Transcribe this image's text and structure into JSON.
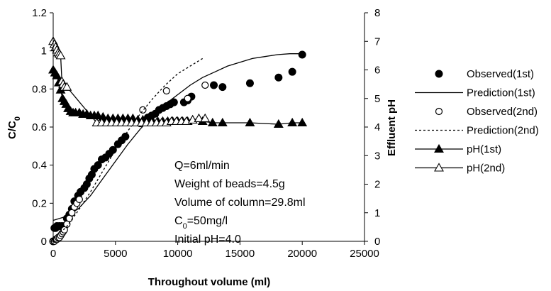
{
  "chart_data": {
    "type": "scatter",
    "xlabel": "Throughout volume (ml)",
    "ylabel_left": "C/C",
    "ylabel_left_subscript": "0",
    "ylabel_right": "Effluent pH",
    "xlim": [
      0,
      25000
    ],
    "ylim_left": [
      0,
      1.2
    ],
    "ylim_right": [
      0,
      8
    ],
    "x_ticks": [
      "0",
      "5000",
      "10000",
      "15000",
      "20000",
      "25000"
    ],
    "y_left_ticks": [
      "0",
      "0.2",
      "0.4",
      "0.6",
      "0.8",
      "1",
      "1.2"
    ],
    "y_right_ticks": [
      "0",
      "1",
      "2",
      "3",
      "4",
      "5",
      "6",
      "7",
      "8"
    ],
    "grid": false,
    "legend_position": "right",
    "annotations": [
      {
        "text": "Q=6ml/min"
      },
      {
        "text": "Weight of beads=4.5g"
      },
      {
        "text": "Volume of column=29.8ml"
      },
      {
        "prefix": "C",
        "sub": "0",
        "suffix": "=50mg/l"
      },
      {
        "text": "Initial pH=4.0"
      }
    ],
    "series": [
      {
        "name": "Observed(1st)",
        "axis": "left",
        "style": "filled-circle",
        "x": [
          0,
          100,
          200,
          300,
          500,
          700,
          900,
          1100,
          1300,
          1500,
          1700,
          2000,
          2200,
          2500,
          2700,
          2900,
          3100,
          3300,
          3600,
          3900,
          4200,
          4500,
          4800,
          5200,
          5500,
          5800,
          7000,
          7300,
          7600,
          7900,
          8200,
          8500,
          8800,
          9100,
          9400,
          9700,
          10500,
          10800,
          11100,
          12900,
          13600,
          15800,
          18100,
          19200,
          20000
        ],
        "y": [
          0.0,
          0.07,
          0.07,
          0.08,
          0.08,
          0.08,
          0.08,
          0.12,
          0.14,
          0.17,
          0.21,
          0.24,
          0.26,
          0.28,
          0.3,
          0.33,
          0.35,
          0.38,
          0.4,
          0.43,
          0.44,
          0.46,
          0.48,
          0.51,
          0.53,
          0.55,
          0.62,
          0.63,
          0.65,
          0.66,
          0.67,
          0.69,
          0.7,
          0.71,
          0.72,
          0.73,
          0.73,
          0.74,
          0.76,
          0.82,
          0.81,
          0.83,
          0.86,
          0.89,
          0.98
        ]
      },
      {
        "name": "Prediction(1st)",
        "axis": "left",
        "style": "solid-line",
        "x": [
          0,
          1000,
          2000,
          3000,
          4000,
          5000,
          6000,
          7000,
          8000,
          9000,
          10000,
          11000,
          12000,
          13000,
          14000,
          15000,
          16000,
          17000,
          18000,
          19000,
          20000
        ],
        "y": [
          0.11,
          0.13,
          0.17,
          0.24,
          0.33,
          0.42,
          0.51,
          0.59,
          0.66,
          0.72,
          0.77,
          0.82,
          0.86,
          0.89,
          0.92,
          0.94,
          0.96,
          0.97,
          0.98,
          0.985,
          0.985
        ]
      },
      {
        "name": "Observed(2nd)",
        "axis": "left",
        "style": "open-circle",
        "x": [
          0,
          100,
          200,
          300,
          400,
          500,
          600,
          700,
          800,
          900,
          1100,
          1300,
          1500,
          1700,
          1900,
          2100,
          7200,
          9100,
          10800,
          12200
        ],
        "y": [
          0.0,
          0.0,
          0.01,
          0.01,
          0.02,
          0.02,
          0.03,
          0.04,
          0.05,
          0.06,
          0.09,
          0.12,
          0.15,
          0.18,
          0.2,
          0.22,
          0.69,
          0.79,
          0.75,
          0.82
        ]
      },
      {
        "name": "Prediction(2nd)",
        "axis": "left",
        "style": "dashed-line",
        "x": [
          0,
          1000,
          2000,
          3000,
          4000,
          5000,
          6000,
          7000,
          8000,
          9000,
          10000,
          11000,
          12000
        ],
        "y": [
          0.02,
          0.07,
          0.16,
          0.26,
          0.37,
          0.48,
          0.58,
          0.67,
          0.75,
          0.82,
          0.88,
          0.92,
          0.96
        ]
      },
      {
        "name": "pH(1st)",
        "axis": "right",
        "style": "filled-triangle-line",
        "x": [
          0,
          150,
          300,
          450,
          600,
          750,
          900,
          1050,
          1200,
          1400,
          1600,
          1800,
          2100,
          2400,
          2700,
          3000,
          3300,
          3600,
          4000,
          4400,
          4800,
          5200,
          5600,
          6000,
          6400,
          6800,
          7200,
          7600,
          8000,
          8400,
          8800,
          9200,
          9600,
          10000,
          10400,
          10800,
          11200,
          12000,
          12800,
          13600,
          15800,
          18100,
          19200,
          20000
        ],
        "y": [
          6.0,
          5.9,
          5.8,
          5.55,
          5.3,
          5.0,
          4.9,
          4.8,
          4.65,
          4.55,
          4.5,
          4.5,
          4.5,
          4.45,
          4.45,
          4.4,
          4.4,
          4.4,
          4.35,
          4.3,
          4.3,
          4.3,
          4.3,
          4.3,
          4.3,
          4.25,
          4.25,
          4.25,
          4.2,
          4.2,
          4.2,
          4.2,
          4.2,
          4.2,
          4.2,
          4.2,
          4.25,
          4.2,
          4.15,
          4.15,
          4.15,
          4.1,
          4.15,
          4.15
        ]
      },
      {
        "name": "pH(2nd)",
        "axis": "right",
        "style": "open-triangle-line",
        "x": [
          0,
          100,
          200,
          300,
          400,
          500,
          600,
          700,
          800,
          900,
          1100,
          3500,
          3900,
          4300,
          4700,
          5100,
          5500,
          5900,
          6300,
          6700,
          7100,
          7500,
          7900,
          8300,
          8700,
          9100,
          9500,
          9900,
          10300,
          10700,
          11200,
          11700,
          12200
        ],
        "y": [
          7.0,
          6.9,
          6.8,
          6.7,
          6.6,
          6.55,
          6.5,
          5.6,
          5.5,
          5.4,
          5.4,
          4.15,
          4.15,
          4.15,
          4.15,
          4.15,
          4.15,
          4.15,
          4.15,
          4.15,
          4.15,
          4.15,
          4.15,
          4.15,
          4.15,
          4.15,
          4.2,
          4.2,
          4.2,
          4.2,
          4.25,
          4.3,
          4.3
        ]
      }
    ]
  }
}
